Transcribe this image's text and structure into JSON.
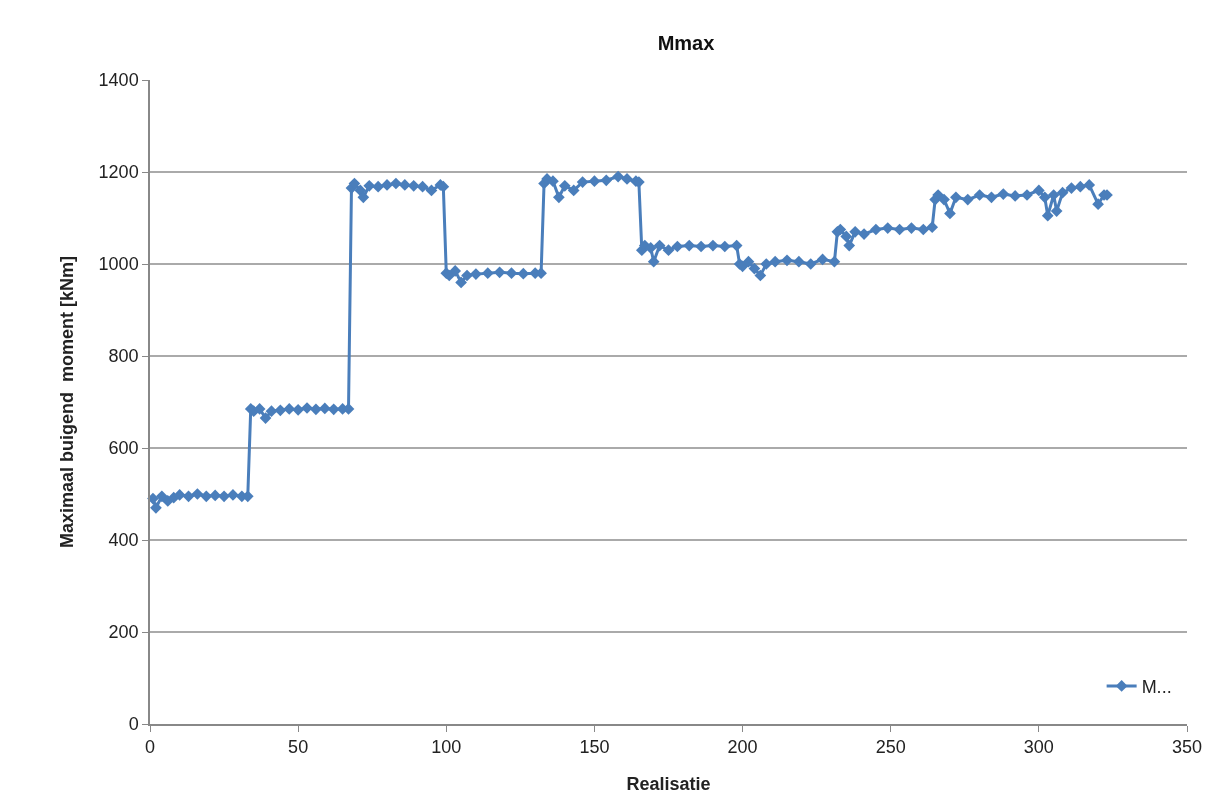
{
  "chart_data": {
    "type": "line",
    "title": "Mmax",
    "xlabel": "Realisatie",
    "ylabel": "Maximaal buigend  moment [kNm]",
    "xlim": [
      0,
      350
    ],
    "ylim": [
      0,
      1400
    ],
    "xticks": [
      0,
      50,
      100,
      150,
      200,
      250,
      300,
      350
    ],
    "yticks": [
      0,
      200,
      400,
      600,
      800,
      1000,
      1200,
      1400
    ],
    "grid": "y",
    "legend": "bottom right",
    "marker": "diamond",
    "line_style": "solid",
    "series": [
      {
        "name": "M...",
        "color": "#4a7ebb",
        "x": [
          1,
          2,
          4,
          6,
          8,
          10,
          13,
          16,
          19,
          22,
          25,
          28,
          31,
          33,
          34,
          35,
          37,
          39,
          41,
          44,
          47,
          50,
          53,
          56,
          59,
          62,
          65,
          67,
          68,
          69,
          71,
          72,
          74,
          77,
          80,
          83,
          86,
          89,
          92,
          95,
          98,
          99,
          100,
          101,
          103,
          105,
          107,
          110,
          114,
          118,
          122,
          126,
          130,
          132,
          133,
          134,
          136,
          138,
          140,
          143,
          146,
          150,
          154,
          158,
          161,
          164,
          165,
          166,
          167,
          169,
          170,
          172,
          175,
          178,
          182,
          186,
          190,
          194,
          198,
          199,
          200,
          202,
          204,
          206,
          208,
          211,
          215,
          219,
          223,
          227,
          231,
          232,
          233,
          235,
          236,
          238,
          241,
          245,
          249,
          253,
          257,
          261,
          264,
          265,
          266,
          268,
          270,
          272,
          276,
          280,
          284,
          288,
          292,
          296,
          300,
          302,
          303,
          305,
          306,
          308,
          311,
          314,
          317,
          320,
          322,
          323
        ],
        "values": [
          490,
          470,
          495,
          485,
          492,
          498,
          495,
          500,
          495,
          497,
          495,
          498,
          495,
          495,
          685,
          680,
          685,
          665,
          680,
          682,
          685,
          683,
          687,
          684,
          686,
          684,
          685,
          685,
          1165,
          1175,
          1160,
          1145,
          1170,
          1168,
          1172,
          1175,
          1172,
          1170,
          1168,
          1160,
          1172,
          1168,
          980,
          975,
          985,
          960,
          975,
          978,
          980,
          982,
          980,
          979,
          980,
          980,
          1175,
          1185,
          1180,
          1145,
          1170,
          1160,
          1178,
          1180,
          1182,
          1190,
          1185,
          1180,
          1178,
          1030,
          1040,
          1035,
          1005,
          1040,
          1030,
          1038,
          1040,
          1038,
          1040,
          1038,
          1040,
          1000,
          995,
          1005,
          990,
          975,
          1000,
          1005,
          1008,
          1005,
          1000,
          1010,
          1005,
          1070,
          1075,
          1060,
          1040,
          1070,
          1065,
          1075,
          1078,
          1075,
          1078,
          1075,
          1080,
          1140,
          1150,
          1140,
          1110,
          1145,
          1140,
          1150,
          1145,
          1152,
          1148,
          1150,
          1160,
          1145,
          1105,
          1150,
          1115,
          1155,
          1165,
          1168,
          1172,
          1130,
          1150,
          1150
        ]
      }
    ]
  }
}
